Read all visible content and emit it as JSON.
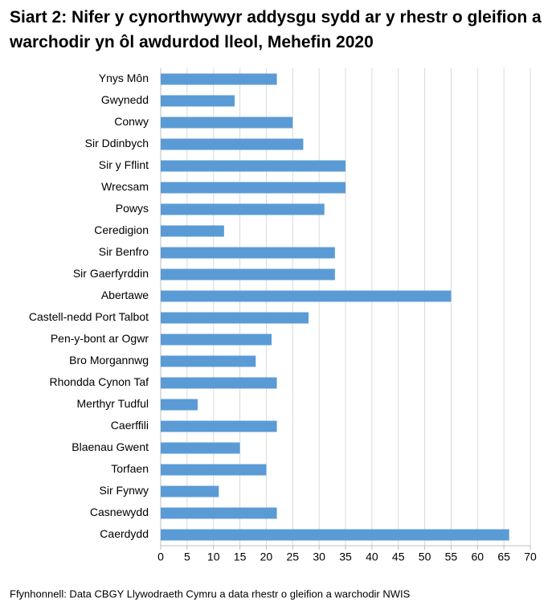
{
  "chart_data": {
    "type": "bar",
    "orientation": "horizontal",
    "title": "Siart 2: Nifer y cynorthwywyr addysgu sydd ar y rhestr o gleifion a warchodir yn ôl awdurdod lleol, Mehefin 2020",
    "source": "Ffynhonnell: Data CBGY Llywodraeth Cymru a data rhestr o gleifion a warchodir NWIS",
    "categories": [
      "Ynys Môn",
      "Gwynedd",
      "Conwy",
      "Sir Ddinbych",
      "Sir y Fflint",
      "Wrecsam",
      "Powys",
      "Ceredigion",
      "Sir Benfro",
      "Sir Gaerfyrddin",
      "Abertawe",
      "Castell-nedd Port Talbot",
      "Pen-y-bont ar Ogwr",
      "Bro Morgannwg",
      "Rhondda Cynon Taf",
      "Merthyr Tudful",
      "Caerffili",
      "Blaenau Gwent",
      "Torfaen",
      "Sir Fynwy",
      "Casnewydd",
      "Caerdydd"
    ],
    "values": [
      22,
      14,
      25,
      27,
      35,
      35,
      31,
      12,
      33,
      33,
      55,
      28,
      21,
      18,
      22,
      7,
      22,
      15,
      20,
      11,
      22,
      66
    ],
    "color": "#5b9bd5",
    "xlim": [
      0,
      70
    ],
    "xticks": [
      0,
      5,
      10,
      15,
      20,
      25,
      30,
      35,
      40,
      45,
      50,
      55,
      60,
      65,
      70
    ],
    "grid": true
  }
}
